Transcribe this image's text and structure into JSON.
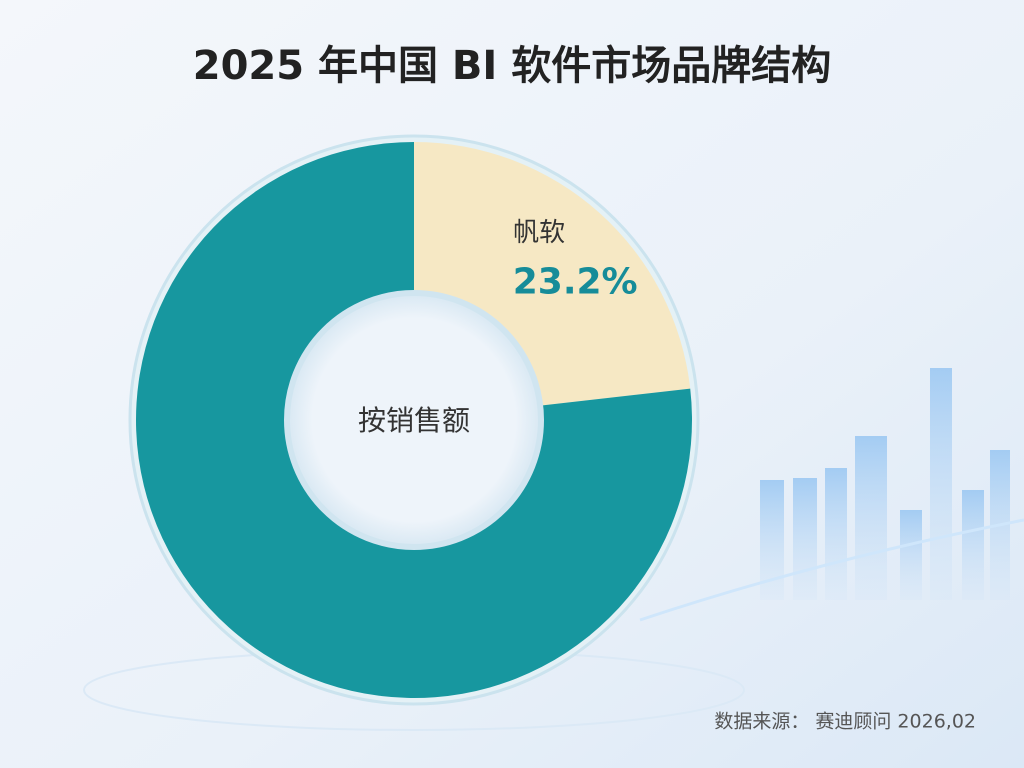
{
  "chart_data": {
    "type": "donut",
    "title": "2025 年中国 BI 软件市场品牌结构",
    "center_label": "按销售额",
    "categories": [
      "帆软",
      null
    ],
    "values": [
      23.2,
      76.8
    ],
    "value_labels": [
      "23.2%",
      null
    ],
    "colors": [
      "#f6e8c4",
      "#17979f"
    ],
    "source": "数据来源： 赛迪顾问  2026,02"
  }
}
